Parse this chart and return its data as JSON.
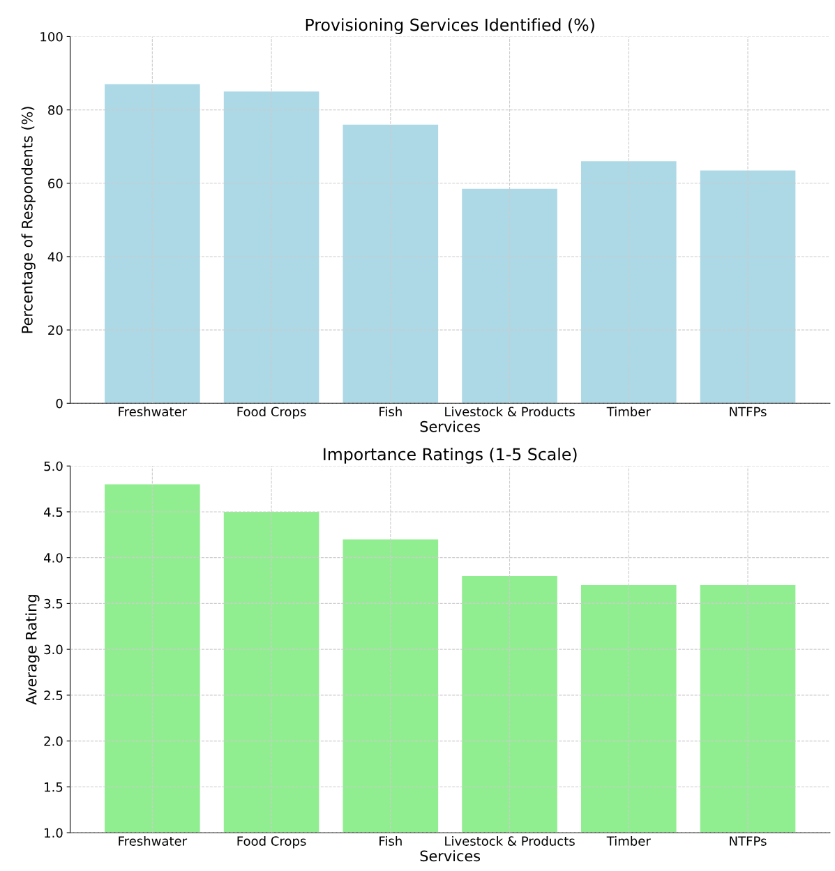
{
  "chart_data": [
    {
      "type": "bar",
      "title": "Provisioning Services Identified (%)",
      "xlabel": "Services",
      "ylabel": "Percentage of Respondents (%)",
      "categories": [
        "Freshwater",
        "Food Crops",
        "Fish",
        "Livestock & Products",
        "Timber",
        "NTFPs"
      ],
      "values": [
        87,
        85,
        76,
        58.5,
        66,
        63.5
      ],
      "color": "#add8e6",
      "ylim": [
        0,
        100
      ],
      "yticks": [
        0,
        20,
        40,
        60,
        80,
        100
      ],
      "grid": true,
      "legend": false
    },
    {
      "type": "bar",
      "title": "Importance Ratings (1-5 Scale)",
      "xlabel": "Services",
      "ylabel": "Average Rating",
      "categories": [
        "Freshwater",
        "Food Crops",
        "Fish",
        "Livestock & Products",
        "Timber",
        "NTFPs"
      ],
      "values": [
        4.8,
        4.5,
        4.2,
        3.8,
        3.7,
        3.7
      ],
      "color": "#90ee90",
      "ylim": [
        1.0,
        5.0
      ],
      "yticks": [
        {
          "value": 1.0,
          "label": "1.0"
        },
        {
          "value": 1.5,
          "label": "1.5"
        },
        {
          "value": 2.0,
          "label": "2.0"
        },
        {
          "value": 2.5,
          "label": "2.5"
        },
        {
          "value": 3.0,
          "label": "3.0"
        },
        {
          "value": 3.5,
          "label": "3.5"
        },
        {
          "value": 4.0,
          "label": "4.0"
        },
        {
          "value": 4.5,
          "label": "4.5"
        },
        {
          "value": 5.0,
          "label": "5.0"
        }
      ],
      "grid": true,
      "legend": false
    }
  ]
}
